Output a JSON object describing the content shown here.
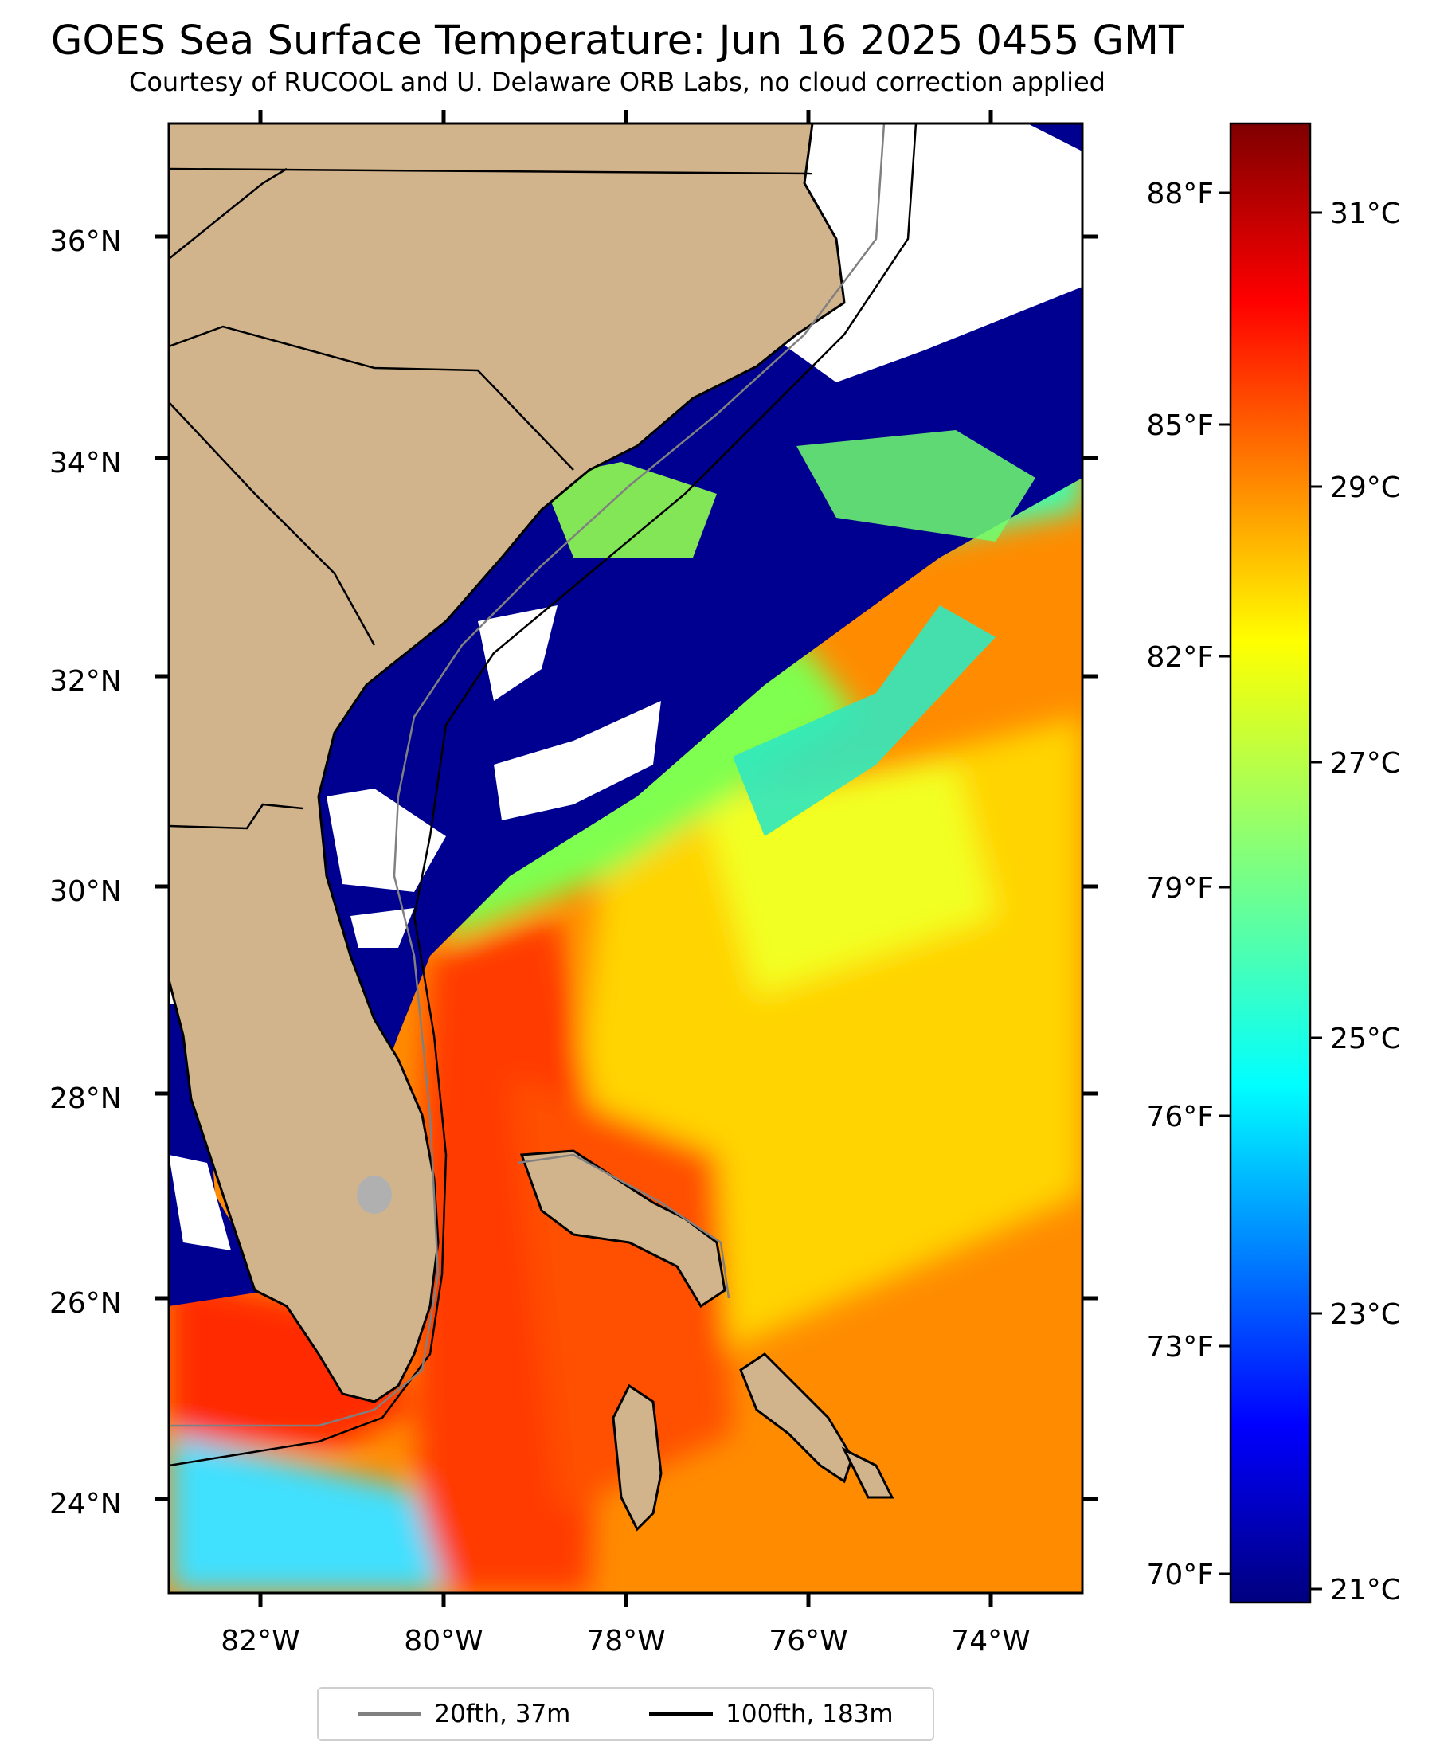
{
  "title": "GOES Sea Surface Temperature: Jun 16 2025 0455 GMT",
  "subtitle": "Courtesy of RUCOOL and U. Delaware ORB Labs, no cloud correction applied",
  "map": {
    "lat_labels": [
      "36°N",
      "34°N",
      "32°N",
      "30°N",
      "28°N",
      "26°N",
      "24°N"
    ],
    "lon_labels": [
      "82°W",
      "80°W",
      "78°W",
      "76°W",
      "74°W"
    ],
    "land_color": "#d2b48c",
    "cloud_color": "#ffffff"
  },
  "colorbar": {
    "celsius_labels": [
      "31°C",
      "29°C",
      "27°C",
      "25°C",
      "23°C",
      "21°C"
    ],
    "fahrenheit_labels": [
      "88°F",
      "85°F",
      "82°F",
      "79°F",
      "76°F",
      "73°F",
      "70°F"
    ],
    "colormap": "jet"
  },
  "legend": {
    "items": [
      {
        "label": "20fth, 37m",
        "color": "#808080"
      },
      {
        "label": "100fth, 183m",
        "color": "#000000"
      }
    ]
  }
}
